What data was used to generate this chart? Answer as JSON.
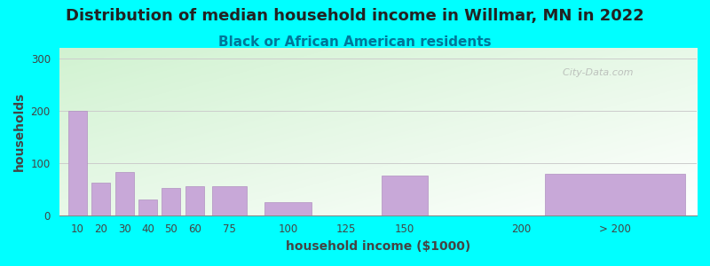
{
  "title": "Distribution of median household income in Willmar, MN in 2022",
  "subtitle": "Black or African American residents",
  "xlabel": "household income ($1000)",
  "ylabel": "households",
  "background_color": "#00FFFF",
  "bar_color": "#c8a8d8",
  "bar_edge_color": "#b090c0",
  "categories": [
    "10",
    "20",
    "30",
    "40",
    "50",
    "60",
    "75",
    "100",
    "125",
    "150",
    "200",
    "> 200"
  ],
  "x_positions": [
    10,
    20,
    30,
    40,
    50,
    60,
    75,
    100,
    125,
    150,
    200,
    240
  ],
  "bar_widths": [
    8,
    8,
    8,
    8,
    8,
    8,
    15,
    20,
    20,
    20,
    20,
    60
  ],
  "values": [
    200,
    63,
    82,
    30,
    52,
    55,
    55,
    25,
    0,
    75,
    0,
    80
  ],
  "ylim": [
    0,
    320
  ],
  "yticks": [
    0,
    100,
    200,
    300
  ],
  "xtick_positions": [
    10,
    20,
    30,
    40,
    50,
    60,
    75,
    100,
    125,
    150,
    200,
    240
  ],
  "xtick_labels": [
    "10",
    "20",
    "30",
    "40",
    "50",
    "60",
    "75",
    "100",
    "125",
    "150",
    "200",
    "> 200"
  ],
  "xlim": [
    2,
    275
  ],
  "title_fontsize": 13,
  "subtitle_fontsize": 11,
  "axis_label_fontsize": 10,
  "title_color": "#222222",
  "subtitle_color": "#007799",
  "axis_color": "#444444",
  "watermark": "  City-Data.com",
  "grid_color": "#cccccc"
}
